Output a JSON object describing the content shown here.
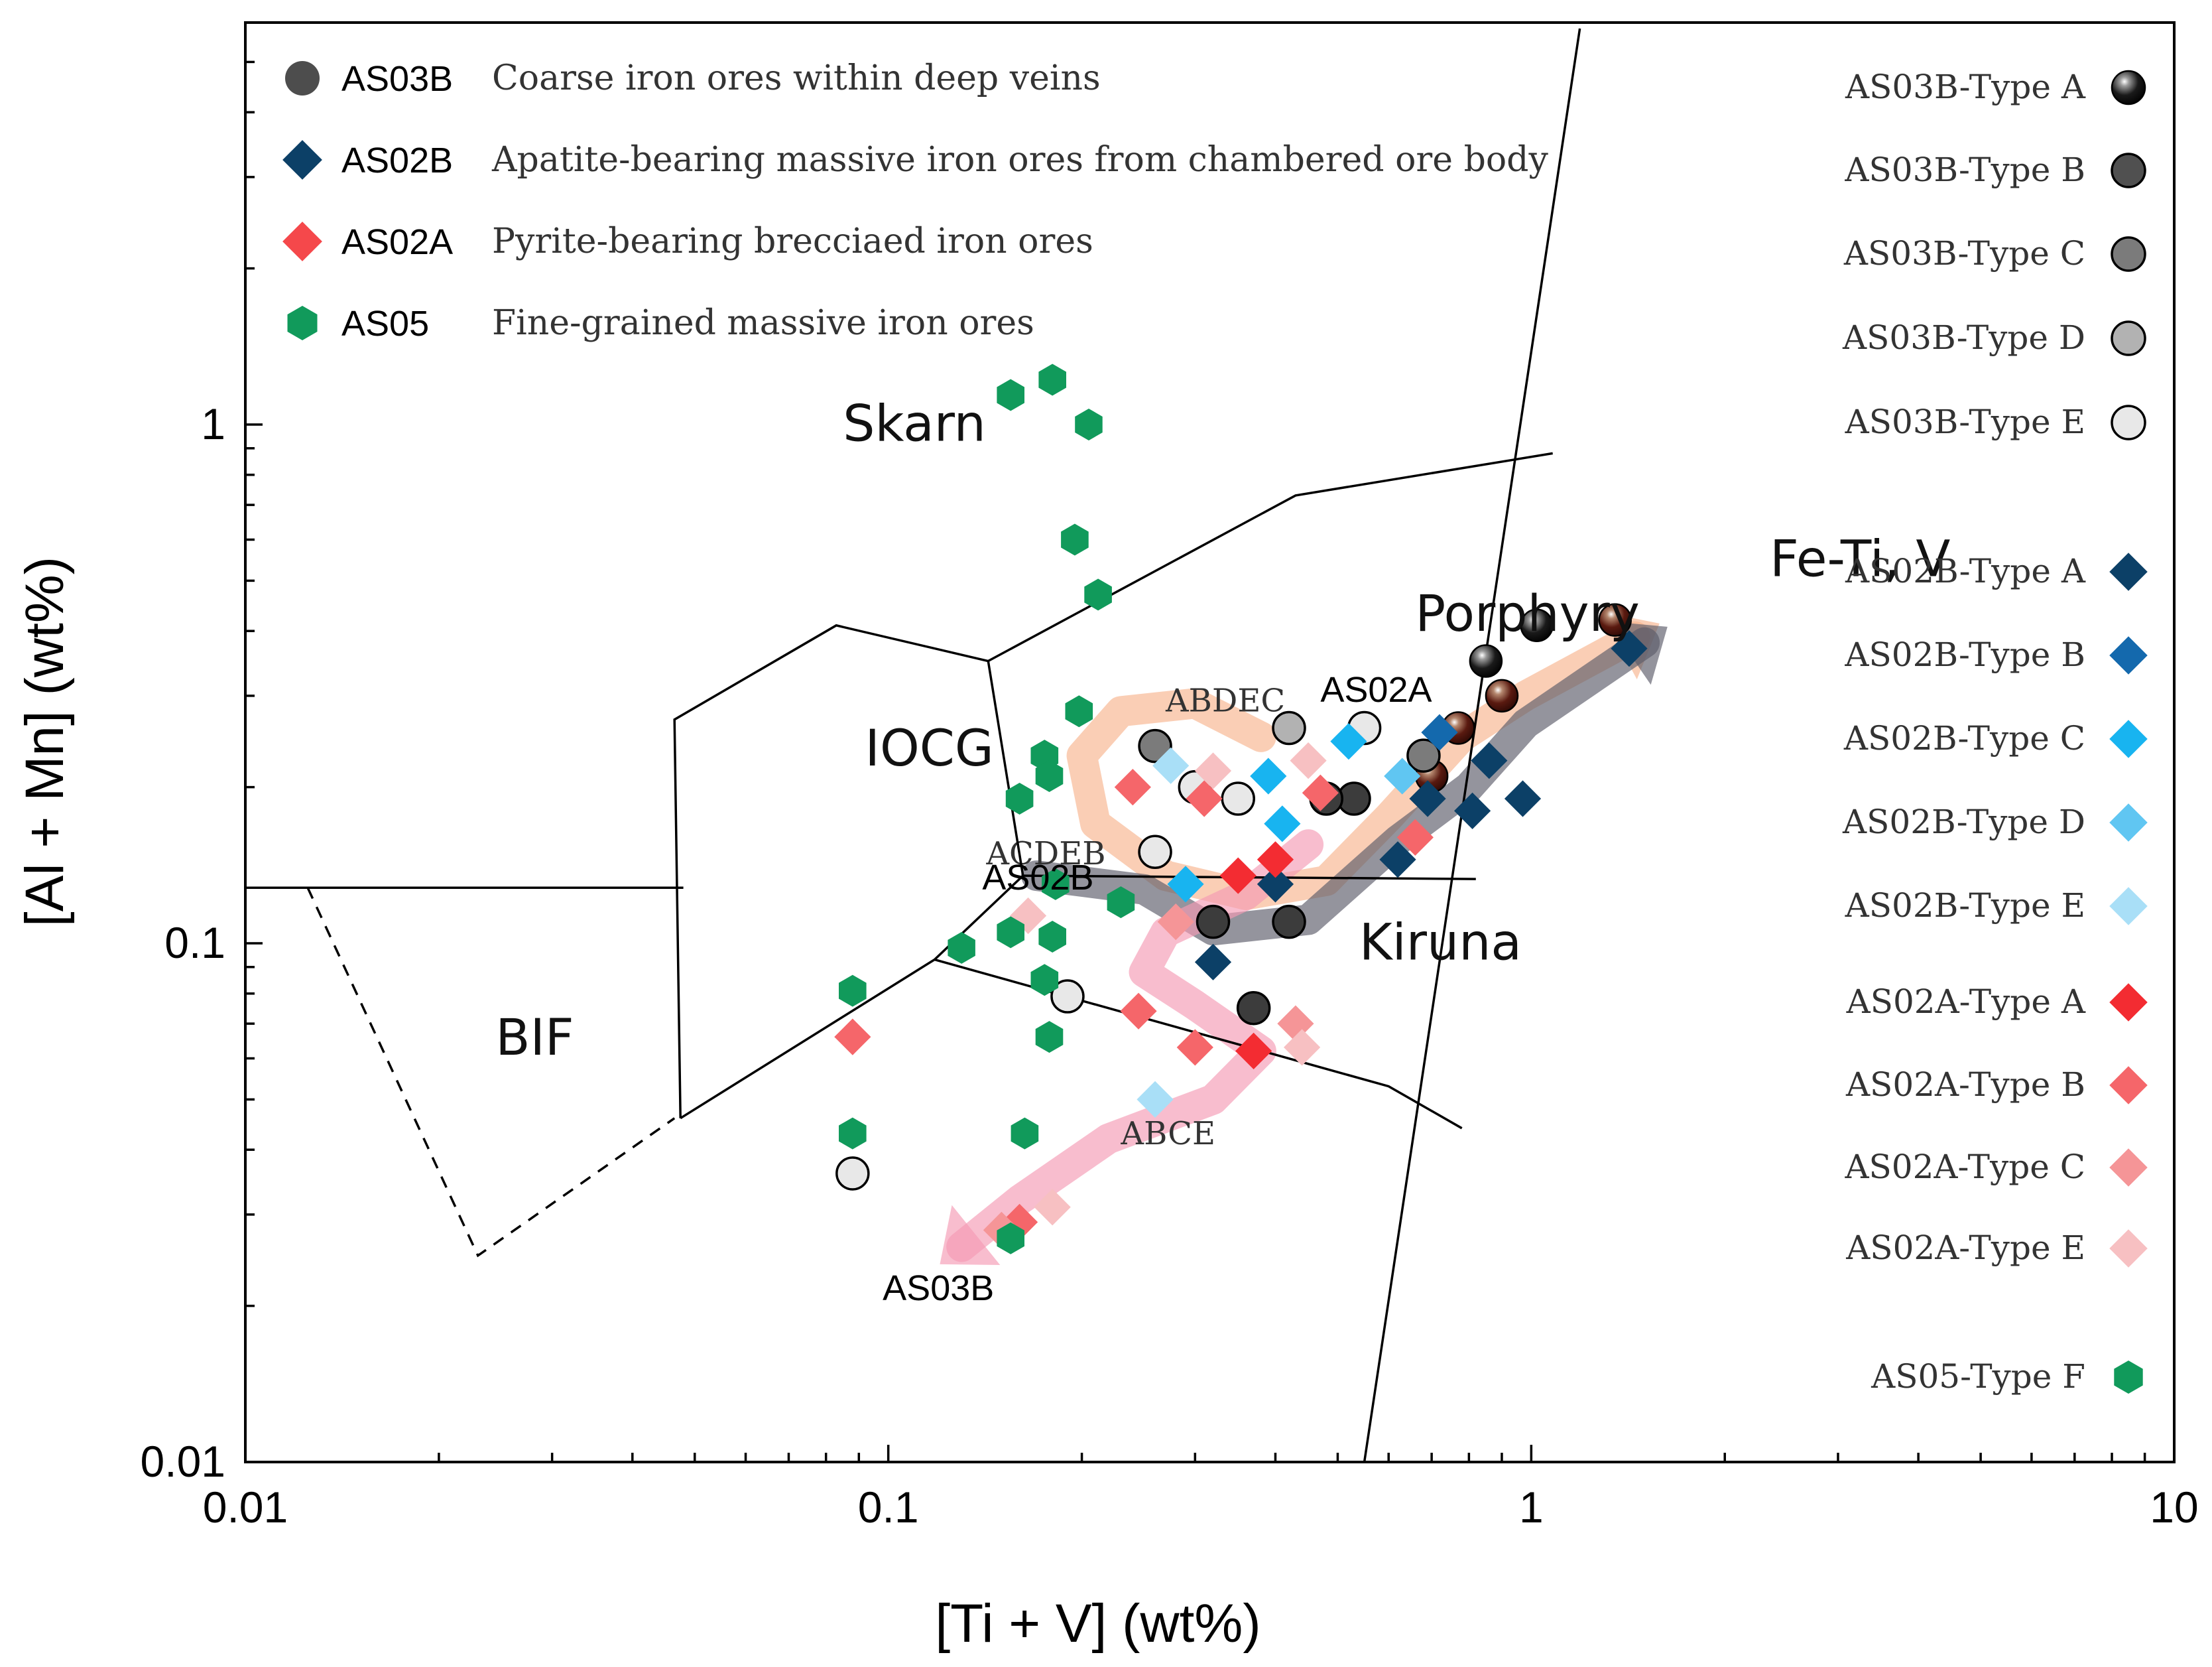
{
  "chart_data": {
    "type": "scatter",
    "title": "",
    "xlabel": "[Ti + V] (wt%)",
    "ylabel": "[Al + Mn] (wt%)",
    "xscale": "log",
    "yscale": "log",
    "xlim": [
      0.01,
      10
    ],
    "ylim": [
      0.01,
      5.8
    ],
    "x_ticks": [
      {
        "value": 0.01,
        "label": "0.01"
      },
      {
        "value": 0.1,
        "label": "0.1"
      },
      {
        "value": 1,
        "label": "1"
      },
      {
        "value": 10,
        "label": "10"
      }
    ],
    "y_ticks": [
      {
        "value": 0.01,
        "label": "0.01"
      },
      {
        "value": 0.1,
        "label": "0.1"
      },
      {
        "value": 1,
        "label": "1"
      }
    ],
    "regions": [
      {
        "name": "Skarn",
        "label": "Skarn",
        "x": 0.085,
        "y": 0.93
      },
      {
        "name": "IOCG",
        "label": "IOCG",
        "x": 0.092,
        "y": 0.22
      },
      {
        "name": "Porphyry",
        "label": "Porphyry",
        "x": 0.66,
        "y": 0.4
      },
      {
        "name": "Kiruna",
        "label": "Kiruna",
        "x": 0.54,
        "y": 0.093
      },
      {
        "name": "BIF",
        "label": "BIF",
        "x": 0.0245,
        "y": 0.061
      },
      {
        "name": "Fe-Ti-V",
        "label": "Fe-Ti, V",
        "x": 2.35,
        "y": 0.51
      }
    ],
    "boundaries": [
      {
        "name": "left-horizontal",
        "style": "solid",
        "points": [
          [
            0.01,
            0.128
          ],
          [
            0.048,
            0.128
          ]
        ]
      },
      {
        "name": "bif-dashed",
        "style": "dashed",
        "points": [
          [
            0.0125,
            0.128
          ],
          [
            0.023,
            0.025
          ],
          [
            0.0465,
            0.046
          ]
        ]
      },
      {
        "name": "iocg-polygon",
        "style": "solid",
        "points": [
          [
            0.0475,
            0.046
          ],
          [
            0.0465,
            0.27
          ],
          [
            0.083,
            0.41
          ],
          [
            0.143,
            0.35
          ],
          [
            0.162,
            0.135
          ],
          [
            0.118,
            0.093
          ],
          [
            0.0475,
            0.046
          ]
        ]
      },
      {
        "name": "porphyry-upper",
        "style": "solid",
        "points": [
          [
            0.143,
            0.35
          ],
          [
            0.43,
            0.73
          ],
          [
            1.08,
            0.88
          ]
        ]
      },
      {
        "name": "porphyry-lower",
        "style": "solid",
        "points": [
          [
            0.162,
            0.135
          ],
          [
            0.82,
            0.133
          ]
        ]
      },
      {
        "name": "kiruna-lower",
        "style": "solid",
        "points": [
          [
            0.118,
            0.093
          ],
          [
            0.6,
            0.053
          ],
          [
            0.78,
            0.044
          ]
        ]
      },
      {
        "name": "fe-ti-v-boundary",
        "style": "solid",
        "points": [
          [
            0.55,
            0.01
          ],
          [
            1.19,
            5.8
          ]
        ]
      }
    ],
    "arrows": [
      {
        "name": "ABDEC",
        "color": "#f7b48e",
        "label": "ABDEC",
        "label_at": [
          0.27,
          0.28
        ],
        "points": [
          [
            0.38,
            0.25
          ],
          [
            0.3,
            0.29
          ],
          [
            0.23,
            0.28
          ],
          [
            0.2,
            0.23
          ],
          [
            0.21,
            0.17
          ],
          [
            0.27,
            0.135
          ],
          [
            0.36,
            0.124
          ],
          [
            0.48,
            0.132
          ],
          [
            0.6,
            0.175
          ],
          [
            0.78,
            0.25
          ],
          [
            0.98,
            0.3
          ],
          [
            1.45,
            0.39
          ]
        ]
      },
      {
        "name": "ACDEB",
        "color": "#5a5a68",
        "label": "ACDEB",
        "label_at": [
          0.142,
          0.142
        ],
        "points": [
          [
            0.17,
            0.135
          ],
          [
            0.25,
            0.127
          ],
          [
            0.32,
            0.106
          ],
          [
            0.45,
            0.111
          ],
          [
            0.62,
            0.158
          ],
          [
            0.8,
            0.2
          ],
          [
            0.98,
            0.265
          ],
          [
            1.5,
            0.38
          ]
        ]
      },
      {
        "name": "ABCE",
        "color": "#f49ab4",
        "label": "ABCE",
        "label_at": [
          0.23,
          0.041
        ],
        "points": [
          [
            0.45,
            0.155
          ],
          [
            0.36,
            0.124
          ],
          [
            0.27,
            0.105
          ],
          [
            0.25,
            0.088
          ],
          [
            0.3,
            0.076
          ],
          [
            0.38,
            0.062
          ],
          [
            0.32,
            0.05
          ],
          [
            0.22,
            0.042
          ],
          [
            0.16,
            0.032
          ],
          [
            0.13,
            0.026
          ]
        ]
      }
    ],
    "annotations": [
      {
        "text": "AS02A",
        "x": 0.47,
        "y": 0.292
      },
      {
        "text": "AS02B",
        "x": 0.14,
        "y": 0.127
      },
      {
        "text": "AS03B",
        "x": 0.098,
        "y": 0.0205
      }
    ],
    "legend_samples": [
      {
        "code": "AS03B",
        "description": "Coarse iron ores within deep veins",
        "marker": "circle",
        "color": "#4d4d4d"
      },
      {
        "code": "AS02B",
        "description": "Apatite-bearing massive iron ores from chambered ore body",
        "marker": "diamond",
        "color": "#0c4067"
      },
      {
        "code": "AS02A",
        "description": "Pyrite-bearing brecciaed iron ores",
        "marker": "diamond",
        "color": "#f5484b"
      },
      {
        "code": "AS05",
        "description": "Fine-grained massive iron ores",
        "marker": "hexagon",
        "color": "#119a5b"
      }
    ],
    "legend_types": [
      {
        "label": "AS03B-Type A",
        "marker": "sphere",
        "color": "#0a0a0a"
      },
      {
        "label": "AS03B-Type B",
        "marker": "circle",
        "color": "#505050"
      },
      {
        "label": "AS03B-Type C",
        "marker": "circle",
        "color": "#7b7b7b"
      },
      {
        "label": "AS03B-Type D",
        "marker": "circle",
        "color": "#b2b2b2"
      },
      {
        "label": "AS03B-Type E",
        "marker": "circle",
        "color": "#e8e8e8"
      },
      {
        "label": "AS02B-Type A",
        "marker": "diamond",
        "color": "#0c4067"
      },
      {
        "label": "AS02B-Type B",
        "marker": "diamond",
        "color": "#1469ad"
      },
      {
        "label": "AS02B-Type C",
        "marker": "diamond",
        "color": "#18b4f0"
      },
      {
        "label": "AS02B-Type D",
        "marker": "diamond",
        "color": "#60c6f2"
      },
      {
        "label": "AS02B-Type E",
        "marker": "diamond",
        "color": "#a9dff7"
      },
      {
        "label": "AS02A-Type A",
        "marker": "diamond",
        "color": "#f32c32"
      },
      {
        "label": "AS02A-Type B",
        "marker": "diamond",
        "color": "#f5666a"
      },
      {
        "label": "AS02A-Type C",
        "marker": "diamond",
        "color": "#f59597"
      },
      {
        "label": "AS02A-Type E",
        "marker": "diamond",
        "color": "#f7c0c2"
      },
      {
        "label": "AS05-Type F",
        "marker": "hexagon",
        "color": "#119a5b"
      }
    ],
    "series": [
      {
        "name": "AS03B-Type A",
        "marker": "sphere",
        "color": "#0a0a0a",
        "points": [
          [
            1.02,
            0.41
          ],
          [
            0.85,
            0.35
          ]
        ]
      },
      {
        "name": "AS03B-Type A (brown)",
        "marker": "sphere",
        "color": "#5a1a10",
        "points": [
          [
            1.35,
            0.42
          ],
          [
            0.9,
            0.3
          ],
          [
            0.77,
            0.26
          ],
          [
            0.7,
            0.21
          ]
        ]
      },
      {
        "name": "AS03B-Type B",
        "marker": "circle",
        "color": "#3c3c3c",
        "points": [
          [
            0.32,
            0.11
          ],
          [
            0.42,
            0.11
          ],
          [
            0.37,
            0.075
          ],
          [
            0.53,
            0.19
          ],
          [
            0.48,
            0.19
          ]
        ]
      },
      {
        "name": "AS03B-Type C",
        "marker": "circle",
        "color": "#7b7b7b",
        "points": [
          [
            0.26,
            0.24
          ],
          [
            0.68,
            0.23
          ]
        ]
      },
      {
        "name": "AS03B-Type D",
        "marker": "circle",
        "color": "#b2b2b2",
        "points": [
          [
            0.42,
            0.26
          ]
        ]
      },
      {
        "name": "AS03B-Type E",
        "marker": "circle",
        "color": "#e8e8e8",
        "points": [
          [
            0.3,
            0.2
          ],
          [
            0.35,
            0.19
          ],
          [
            0.26,
            0.15
          ],
          [
            0.55,
            0.26
          ],
          [
            0.19,
            0.079
          ],
          [
            0.088,
            0.036
          ]
        ]
      },
      {
        "name": "AS02B-Type A",
        "marker": "diamond",
        "color": "#0c4067",
        "points": [
          [
            1.42,
            0.37
          ],
          [
            0.97,
            0.19
          ],
          [
            0.86,
            0.225
          ],
          [
            0.81,
            0.18
          ],
          [
            0.69,
            0.19
          ],
          [
            0.32,
            0.092
          ],
          [
            0.62,
            0.145
          ],
          [
            0.4,
            0.13
          ]
        ]
      },
      {
        "name": "AS02B-Type B",
        "marker": "diamond",
        "color": "#1469ad",
        "points": [
          [
            0.72,
            0.255
          ]
        ]
      },
      {
        "name": "AS02B-Type C",
        "marker": "diamond",
        "color": "#18b4f0",
        "points": [
          [
            0.52,
            0.245
          ],
          [
            0.39,
            0.21
          ],
          [
            0.41,
            0.17
          ],
          [
            0.29,
            0.13
          ]
        ]
      },
      {
        "name": "AS02B-Type D",
        "marker": "diamond",
        "color": "#60c6f2",
        "points": [
          [
            0.63,
            0.21
          ]
        ]
      },
      {
        "name": "AS02B-Type E",
        "marker": "diamond",
        "color": "#a9dff7",
        "points": [
          [
            0.275,
            0.22
          ],
          [
            0.26,
            0.05
          ]
        ]
      },
      {
        "name": "AS02A-Type A",
        "marker": "diamond",
        "color": "#f32c32",
        "points": [
          [
            0.35,
            0.135
          ],
          [
            0.37,
            0.062
          ],
          [
            0.4,
            0.145
          ]
        ]
      },
      {
        "name": "AS02A-Type B",
        "marker": "diamond",
        "color": "#f5666a",
        "points": [
          [
            0.24,
            0.2
          ],
          [
            0.31,
            0.19
          ],
          [
            0.47,
            0.195
          ],
          [
            0.66,
            0.16
          ],
          [
            0.245,
            0.074
          ],
          [
            0.3,
            0.063
          ],
          [
            0.088,
            0.066
          ],
          [
            0.16,
            0.029
          ]
        ]
      },
      {
        "name": "AS02A-Type C",
        "marker": "diamond",
        "color": "#f59597",
        "points": [
          [
            0.43,
            0.07
          ],
          [
            0.28,
            0.11
          ],
          [
            0.15,
            0.028
          ]
        ]
      },
      {
        "name": "AS02A-Type E",
        "marker": "diamond",
        "color": "#f7c0c2",
        "points": [
          [
            0.45,
            0.225
          ],
          [
            0.32,
            0.215
          ],
          [
            0.44,
            0.063
          ],
          [
            0.165,
            0.113
          ],
          [
            0.18,
            0.031
          ]
        ]
      },
      {
        "name": "AS05-Type F",
        "marker": "hexagon",
        "color": "#119a5b",
        "points": [
          [
            0.155,
            1.14
          ],
          [
            0.18,
            1.22
          ],
          [
            0.205,
            1.0
          ],
          [
            0.195,
            0.6
          ],
          [
            0.212,
            0.47
          ],
          [
            0.198,
            0.28
          ],
          [
            0.175,
            0.23
          ],
          [
            0.178,
            0.21
          ],
          [
            0.16,
            0.19
          ],
          [
            0.182,
            0.13
          ],
          [
            0.23,
            0.12
          ],
          [
            0.155,
            0.105
          ],
          [
            0.13,
            0.098
          ],
          [
            0.18,
            0.103
          ],
          [
            0.175,
            0.085
          ],
          [
            0.088,
            0.081
          ],
          [
            0.178,
            0.066
          ],
          [
            0.088,
            0.043
          ],
          [
            0.163,
            0.043
          ],
          [
            0.155,
            0.027
          ]
        ]
      }
    ]
  }
}
